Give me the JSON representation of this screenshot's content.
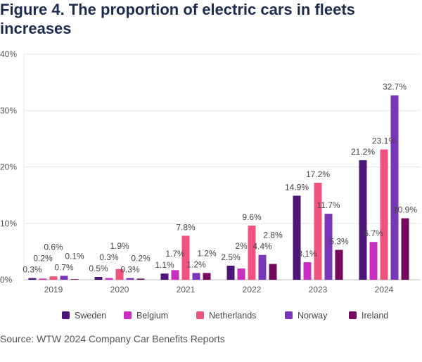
{
  "chart_data": {
    "type": "bar",
    "title": "Figure 4. The proportion of electric cars in fleets increases",
    "source": "Source: WTW 2024 Company Car Benefits Reports",
    "categories": [
      "2019",
      "2020",
      "2021",
      "2022",
      "2023",
      "2024"
    ],
    "ylim": [
      0,
      40
    ],
    "yticks": [
      0,
      10,
      20,
      30,
      40
    ],
    "ytick_labels": [
      "0%",
      "10%",
      "20%",
      "30%",
      "40%"
    ],
    "grid": true,
    "legend_position": "bottom",
    "series": [
      {
        "name": "Sweden",
        "color": "#4b1678",
        "values": [
          0.3,
          0.5,
          1.1,
          2.5,
          14.9,
          21.2
        ],
        "labels": [
          "0.3%",
          "0.5%",
          "1.1%",
          "2.5%",
          "14.9%",
          "21.2%"
        ]
      },
      {
        "name": "Belgium",
        "color": "#c82ebf",
        "values": [
          0.2,
          0.3,
          1.7,
          2,
          3.1,
          6.7
        ],
        "labels": [
          "0.2%",
          "0.3%",
          "1.7%",
          "2%",
          "3.1%",
          "6.7%"
        ]
      },
      {
        "name": "Netherlands",
        "color": "#f0547e",
        "values": [
          0.6,
          1.9,
          7.8,
          9.6,
          17.2,
          23.1
        ],
        "labels": [
          "0.6%",
          "1.9%",
          "7.8%",
          "9.6%",
          "17.2%",
          "23.1%"
        ]
      },
      {
        "name": "Norway",
        "color": "#7a36b8",
        "values": [
          0.7,
          0.3,
          1.2,
          4.4,
          11.7,
          32.7
        ],
        "labels": [
          "0.7%",
          "0.3%",
          "1.2%",
          "4.4%",
          "11.7%",
          "32.7%"
        ]
      },
      {
        "name": "Ireland",
        "color": "#74095c",
        "values": [
          0.1,
          0.2,
          1.2,
          2.8,
          5.3,
          10.9
        ],
        "labels": [
          "0.1%",
          "0.2%",
          "1.2%",
          "2.8%",
          "5.3%",
          "10.9%"
        ]
      }
    ]
  }
}
